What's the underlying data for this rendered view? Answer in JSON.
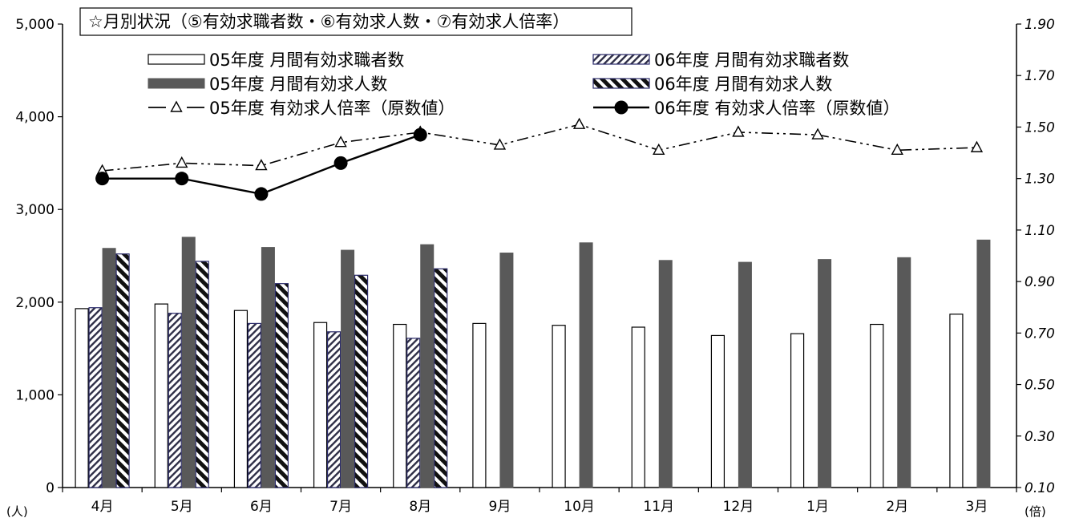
{
  "chart_data": {
    "type": "bar",
    "title": "☆月別状況（⑤有効求職者数・⑥有効求人数・⑦有効求人倍率）",
    "categories": [
      "4月",
      "5月",
      "6月",
      "7月",
      "8月",
      "9月",
      "10月",
      "11月",
      "12月",
      "1月",
      "2月",
      "3月"
    ],
    "y_unit_label": "(人)",
    "y2_unit_label": "(倍)",
    "ylim": [
      0,
      5000
    ],
    "yticks": [
      "0",
      "1,000",
      "2,000",
      "3,000",
      "4,000",
      "5,000"
    ],
    "y2lim": [
      0.1,
      1.9
    ],
    "y2ticks": [
      "0.10",
      "0.30",
      "0.50",
      "0.70",
      "0.90",
      "1.10",
      "1.30",
      "1.50",
      "1.70",
      "1.90"
    ],
    "grid": false,
    "legend_position": "top",
    "series": [
      {
        "name": "05年度 月間有効求職者数",
        "kind": "bar",
        "axis": "left",
        "style": "white",
        "values": [
          1930,
          1980,
          1910,
          1780,
          1760,
          1770,
          1750,
          1730,
          1640,
          1660,
          1760,
          1870
        ]
      },
      {
        "name": "06年度 月間有効求職者数",
        "kind": "bar",
        "axis": "left",
        "style": "hatch-thin",
        "values": [
          1940,
          1880,
          1770,
          1680,
          1610,
          null,
          null,
          null,
          null,
          null,
          null,
          null
        ]
      },
      {
        "name": "05年度 月間有効求人数",
        "kind": "bar",
        "axis": "left",
        "style": "dark",
        "values": [
          2580,
          2700,
          2590,
          2560,
          2620,
          2530,
          2640,
          2450,
          2430,
          2460,
          2480,
          2670
        ]
      },
      {
        "name": "06年度 月間有効求人数",
        "kind": "bar",
        "axis": "left",
        "style": "hatch-bold",
        "values": [
          2520,
          2440,
          2200,
          2290,
          2360,
          null,
          null,
          null,
          null,
          null,
          null,
          null
        ]
      },
      {
        "name": "05年度 有効求人倍率（原数値）",
        "kind": "line",
        "axis": "right",
        "style": "dashdot-triangle",
        "values": [
          1.33,
          1.36,
          1.35,
          1.44,
          1.48,
          1.43,
          1.51,
          1.41,
          1.48,
          1.47,
          1.41,
          1.42
        ]
      },
      {
        "name": "06年度 有効求人倍率（原数値）",
        "kind": "line",
        "axis": "right",
        "style": "solid-circle",
        "values": [
          1.3,
          1.3,
          1.24,
          1.36,
          1.47,
          null,
          null,
          null,
          null,
          null,
          null,
          null
        ]
      }
    ]
  }
}
